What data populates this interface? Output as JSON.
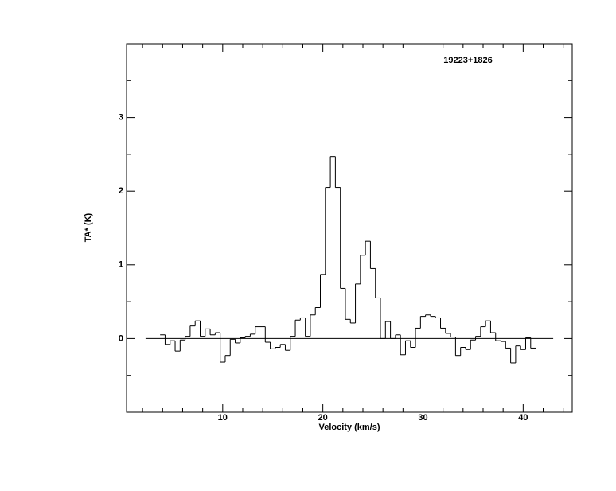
{
  "chart_data": {
    "type": "step",
    "title": "19223+1826",
    "x_label": "Velocity (km/s)",
    "y_label": "TA* (K)",
    "x": [
      4,
      4.5,
      5,
      5.5,
      6,
      6.5,
      7,
      7.5,
      8,
      8.5,
      9,
      9.5,
      10,
      10.5,
      11,
      11.5,
      12,
      12.5,
      13,
      13.5,
      14,
      14.5,
      15,
      15.5,
      16,
      16.5,
      17,
      17.5,
      18,
      18.5,
      19,
      19.5,
      20,
      20.5,
      21,
      21.5,
      22,
      22.5,
      23,
      23.5,
      24,
      24.5,
      25,
      25.5,
      26,
      26.5,
      27,
      27.5,
      28,
      28.5,
      29,
      29.5,
      30,
      30.5,
      31,
      31.5,
      32,
      32.5,
      33,
      33.5,
      34,
      34.5,
      35,
      35.5,
      36,
      36.5,
      37,
      37.5,
      38,
      38.5,
      39,
      39.5,
      40,
      40.5,
      41
    ],
    "values": [
      0.05,
      -0.08,
      -0.03,
      -0.17,
      -0.02,
      0.03,
      0.17,
      0.24,
      0.03,
      0.13,
      0.05,
      0.08,
      -0.32,
      -0.23,
      -0.01,
      -0.06,
      0.01,
      0.03,
      0.06,
      0.16,
      0.16,
      -0.05,
      -0.14,
      -0.12,
      -0.08,
      -0.16,
      0.03,
      0.25,
      0.28,
      0.03,
      0.32,
      0.42,
      0.87,
      2.05,
      2.47,
      2.05,
      0.68,
      0.26,
      0.21,
      0.74,
      1.13,
      1.32,
      0.95,
      0.55,
      0.0,
      0.23,
      0.0,
      0.05,
      -0.22,
      -0.03,
      -0.12,
      0.14,
      0.3,
      0.32,
      0.3,
      0.28,
      0.14,
      0.07,
      0.02,
      -0.23,
      -0.12,
      -0.15,
      -0.02,
      0.03,
      0.16,
      0.24,
      0.08,
      -0.03,
      -0.04,
      -0.13,
      -0.33,
      -0.1,
      -0.15,
      0.01,
      -0.13
    ],
    "color": "#000000",
    "baseline": {
      "y": 0,
      "x": [
        2.3,
        43
      ]
    },
    "xlim": [
      0.4,
      44.9
    ],
    "ylim": [
      -1,
      4
    ],
    "xticks": [
      10,
      20,
      30,
      40
    ],
    "yticks": [
      0,
      1,
      2,
      3
    ],
    "xminorticks": [
      2,
      4,
      6,
      8,
      12,
      14,
      16,
      18,
      22,
      24,
      26,
      28,
      32,
      34,
      36,
      38,
      42,
      44
    ],
    "yminorticks": [
      -0.5,
      0.5,
      1.5,
      2.5,
      3.5
    ]
  }
}
